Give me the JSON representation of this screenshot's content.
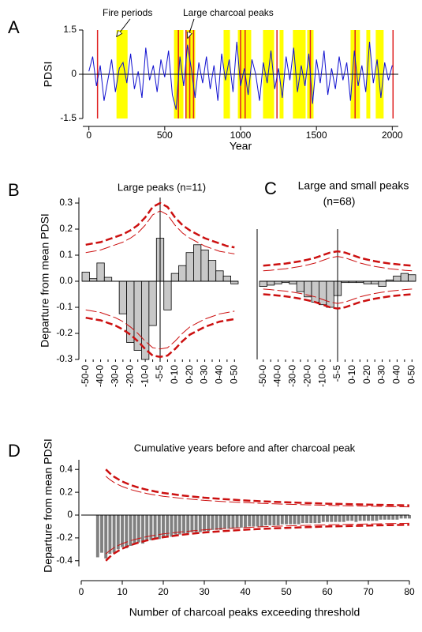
{
  "chart_data": [
    {
      "type": "line",
      "label": "A",
      "ylabel": "PDSI",
      "xlabel": "Year",
      "annotations": [
        "Fire periods",
        "Large charcoal peaks"
      ],
      "xlim": [
        -40,
        2040
      ],
      "xticks": [
        0,
        500,
        1000,
        1500,
        2000
      ],
      "ylim": [
        -1.5,
        1.5
      ],
      "yticks": [
        -1.5,
        0,
        1.5
      ],
      "x": [
        0,
        25,
        50,
        75,
        100,
        125,
        150,
        175,
        200,
        225,
        250,
        275,
        300,
        325,
        350,
        375,
        400,
        425,
        450,
        475,
        500,
        525,
        550,
        575,
        600,
        625,
        650,
        675,
        700,
        725,
        750,
        775,
        800,
        825,
        850,
        875,
        900,
        925,
        950,
        975,
        1000,
        1025,
        1050,
        1075,
        1100,
        1125,
        1150,
        1175,
        1200,
        1225,
        1250,
        1275,
        1300,
        1325,
        1350,
        1375,
        1400,
        1425,
        1450,
        1475,
        1500,
        1525,
        1550,
        1575,
        1600,
        1625,
        1650,
        1675,
        1700,
        1725,
        1750,
        1775,
        1800,
        1825,
        1850,
        1875,
        1900,
        1925,
        1950,
        1975,
        2000
      ],
      "series": [
        {
          "color": "#1010d0",
          "values": [
            0.1,
            0.6,
            -0.4,
            0.3,
            -0.9,
            -0.2,
            0.5,
            -0.6,
            0.2,
            0.4,
            -0.3,
            0.7,
            -0.5,
            0.1,
            -0.8,
            0.9,
            -0.2,
            0.3,
            -0.6,
            0.5,
            -0.1,
            0.8,
            -0.7,
            -1.2,
            0.6,
            -0.4,
            1.0,
            0.2,
            -0.8,
            0.4,
            -0.3,
            0.6,
            -0.5,
            0.3,
            -0.9,
            0.7,
            -0.2,
            0.5,
            -0.6,
            1.1,
            -0.4,
            0.2,
            -0.7,
            0.5,
            0.0,
            -0.9,
            0.4,
            -0.3,
            0.8,
            -0.5,
            0.2,
            -0.8,
            0.6,
            -0.2,
            0.9,
            -0.6,
            0.3,
            -0.4,
            0.7,
            -1.0,
            0.5,
            -0.3,
            0.8,
            -0.7,
            0.2,
            -0.5,
            0.6,
            -0.2,
            0.4,
            -0.9,
            0.8,
            -0.4,
            0.3,
            -0.6,
            1.1,
            -0.3,
            0.5,
            -0.8,
            0.4,
            -0.2,
            0.3
          ]
        }
      ],
      "fire_periods": [
        [
          182,
          255
        ],
        [
          561,
          623
        ],
        [
          644,
          701
        ],
        [
          888,
          930
        ],
        [
          982,
          1070
        ],
        [
          1148,
          1221
        ],
        [
          1257,
          1283
        ],
        [
          1345,
          1429
        ],
        [
          1439,
          1481
        ],
        [
          1725,
          1787
        ],
        [
          1829,
          1855
        ],
        [
          1891,
          1943
        ]
      ],
      "fire_color": "#ffff00",
      "charcoal_peaks": [
        57,
        590,
        640,
        665,
        690,
        1000,
        1030,
        1240,
        1460,
        1755,
        2005
      ],
      "peak_color": "#e02020"
    },
    {
      "type": "bar",
      "label": "B",
      "title": "Large peaks (n=11)",
      "ylabel": "Departure from mean PDSI",
      "categories": [
        "-50-0",
        null,
        "-40-0",
        null,
        "-30-0",
        null,
        "-20-0",
        null,
        "-10-0",
        null,
        "-5-5",
        null,
        "0-10",
        null,
        "0-20",
        null,
        "0-30",
        null,
        "0-40",
        null,
        "0-50"
      ],
      "values": [
        0.035,
        0.01,
        0.07,
        0.015,
        0.0,
        -0.125,
        -0.235,
        -0.265,
        -0.3,
        -0.17,
        0.165,
        -0.11,
        0.03,
        0.06,
        0.11,
        0.14,
        0.12,
        0.08,
        0.04,
        0.02,
        -0.01
      ],
      "color": "#c8c8c8",
      "ylim": [
        -0.3,
        0.3
      ],
      "yticks": [
        -0.3,
        -0.2,
        -0.1,
        {
          "value": 0,
          "label": "0.0"
        },
        0.1,
        0.2,
        0.3
      ],
      "series": [
        {
          "color": "#cc1010",
          "width": 2.5,
          "values": [
            0.14,
            0.145,
            0.15,
            0.16,
            0.17,
            0.18,
            0.195,
            0.215,
            0.245,
            0.285,
            0.3,
            0.285,
            0.245,
            0.215,
            0.195,
            0.18,
            0.165,
            0.155,
            0.145,
            0.135,
            0.13
          ]
        },
        {
          "color": "#cc1010",
          "width": 1,
          "values": [
            0.11,
            0.115,
            0.12,
            0.13,
            0.14,
            0.15,
            0.165,
            0.185,
            0.215,
            0.255,
            0.27,
            0.255,
            0.215,
            0.185,
            0.165,
            0.15,
            0.135,
            0.125,
            0.115,
            0.11,
            0.105
          ]
        },
        {
          "color": "#cc1010",
          "width": 2.5,
          "values": [
            -0.14,
            -0.145,
            -0.15,
            -0.16,
            -0.17,
            -0.185,
            -0.205,
            -0.23,
            -0.26,
            -0.285,
            -0.29,
            -0.285,
            -0.26,
            -0.23,
            -0.205,
            -0.19,
            -0.175,
            -0.165,
            -0.155,
            -0.15,
            -0.145
          ]
        },
        {
          "color": "#cc1010",
          "width": 1,
          "values": [
            -0.11,
            -0.115,
            -0.12,
            -0.13,
            -0.14,
            -0.155,
            -0.175,
            -0.2,
            -0.23,
            -0.255,
            -0.26,
            -0.255,
            -0.23,
            -0.2,
            -0.175,
            -0.16,
            -0.145,
            -0.135,
            -0.125,
            -0.12,
            -0.115
          ]
        }
      ]
    },
    {
      "type": "bar",
      "label": "C",
      "title": "Large and small peaks",
      "subtitle": "(n=68)",
      "categories": [
        "-50-0",
        null,
        "-40-0",
        null,
        "-30-0",
        null,
        "-20-0",
        null,
        "-10-0",
        null,
        "-5-5",
        null,
        "0-10",
        null,
        "0-20",
        null,
        "0-30",
        null,
        "0-40",
        null,
        "0-50"
      ],
      "values": [
        -0.02,
        -0.015,
        -0.01,
        -0.005,
        -0.01,
        -0.04,
        -0.06,
        -0.08,
        -0.09,
        -0.1,
        -0.055,
        -0.005,
        -0.005,
        -0.005,
        -0.01,
        -0.01,
        -0.02,
        0.005,
        0.02,
        0.03,
        0.025
      ],
      "color": "#c8c8c8",
      "ylim": [
        -0.3,
        0.3
      ],
      "series": [
        {
          "color": "#cc1010",
          "width": 2.5,
          "values": [
            0.06,
            0.062,
            0.065,
            0.068,
            0.072,
            0.077,
            0.083,
            0.09,
            0.1,
            0.11,
            0.115,
            0.11,
            0.1,
            0.09,
            0.083,
            0.077,
            0.072,
            0.068,
            0.065,
            0.062,
            0.06
          ]
        },
        {
          "color": "#cc1010",
          "width": 1,
          "values": [
            0.04,
            0.042,
            0.045,
            0.048,
            0.052,
            0.057,
            0.063,
            0.07,
            0.08,
            0.09,
            0.095,
            0.09,
            0.08,
            0.07,
            0.063,
            0.057,
            0.052,
            0.048,
            0.045,
            0.042,
            0.04
          ]
        },
        {
          "color": "#cc1010",
          "width": 2.5,
          "values": [
            -0.05,
            -0.052,
            -0.055,
            -0.058,
            -0.062,
            -0.067,
            -0.073,
            -0.08,
            -0.09,
            -0.1,
            -0.105,
            -0.1,
            -0.09,
            -0.08,
            -0.073,
            -0.067,
            -0.062,
            -0.058,
            -0.055,
            -0.052,
            -0.05
          ]
        },
        {
          "color": "#cc1010",
          "width": 1,
          "values": [
            -0.03,
            -0.032,
            -0.035,
            -0.038,
            -0.042,
            -0.047,
            -0.053,
            -0.06,
            -0.07,
            -0.08,
            -0.085,
            -0.08,
            -0.07,
            -0.06,
            -0.053,
            -0.047,
            -0.042,
            -0.038,
            -0.035,
            -0.032,
            -0.03
          ]
        }
      ]
    },
    {
      "type": "bar",
      "label": "D",
      "title": "Cumulative years before and after charcoal peak",
      "ylabel": "Departure from mean PDSI",
      "xlabel": "Number of charcoal peaks exceeding threshold",
      "xlim": [
        0,
        80
      ],
      "xticks": [
        0,
        10,
        20,
        30,
        40,
        50,
        60,
        70,
        80
      ],
      "ylim": [
        -0.45,
        0.45
      ],
      "yticks": [
        -0.4,
        -0.2,
        0,
        0.2,
        0.4
      ],
      "color": "#808080",
      "x": [
        4,
        5,
        6,
        7,
        8,
        9,
        10,
        11,
        12,
        13,
        14,
        15,
        16,
        17,
        18,
        19,
        20,
        21,
        22,
        23,
        24,
        25,
        26,
        27,
        28,
        29,
        30,
        31,
        32,
        33,
        34,
        35,
        36,
        37,
        38,
        39,
        40,
        41,
        42,
        43,
        44,
        45,
        46,
        47,
        48,
        49,
        50,
        51,
        52,
        53,
        54,
        55,
        56,
        57,
        58,
        59,
        60,
        61,
        62,
        63,
        64,
        65,
        66,
        67,
        68,
        69,
        70,
        71,
        72,
        73,
        74,
        75,
        76,
        77,
        78,
        79,
        80
      ],
      "values": [
        -0.37,
        -0.33,
        -0.38,
        -0.34,
        -0.33,
        -0.3,
        -0.28,
        -0.29,
        -0.27,
        -0.25,
        -0.24,
        -0.25,
        -0.22,
        -0.22,
        -0.2,
        -0.21,
        -0.19,
        -0.18,
        -0.19,
        -0.17,
        -0.17,
        -0.16,
        -0.16,
        -0.15,
        -0.15,
        -0.15,
        -0.14,
        -0.14,
        -0.13,
        -0.13,
        -0.13,
        -0.12,
        -0.12,
        -0.12,
        -0.11,
        -0.11,
        -0.11,
        -0.1,
        -0.1,
        -0.1,
        -0.1,
        -0.09,
        -0.09,
        -0.09,
        -0.09,
        -0.08,
        -0.08,
        -0.08,
        -0.08,
        -0.08,
        -0.07,
        -0.07,
        -0.07,
        -0.07,
        -0.07,
        -0.06,
        -0.06,
        -0.06,
        -0.06,
        -0.06,
        -0.06,
        -0.05,
        -0.05,
        -0.06,
        -0.05,
        -0.05,
        -0.05,
        -0.05,
        -0.05,
        -0.04,
        -0.04,
        -0.04,
        -0.04,
        -0.04,
        -0.03,
        -0.03,
        -0.03
      ],
      "series": [
        {
          "color": "#cc1010",
          "width": 2.5,
          "x": [
            6,
            7,
            8,
            9,
            10,
            12,
            14,
            16,
            18,
            20,
            25,
            30,
            35,
            40,
            45,
            50,
            55,
            60,
            65,
            70,
            75,
            80
          ],
          "values": [
            0.4,
            0.365,
            0.336,
            0.314,
            0.294,
            0.264,
            0.241,
            0.222,
            0.207,
            0.194,
            0.17,
            0.152,
            0.139,
            0.128,
            0.119,
            0.112,
            0.106,
            0.1,
            0.096,
            0.092,
            0.088,
            0.085
          ]
        },
        {
          "color": "#cc1010",
          "width": 1,
          "x": [
            6,
            7,
            8,
            9,
            10,
            12,
            14,
            16,
            18,
            20,
            25,
            30,
            35,
            40,
            45,
            50,
            55,
            60,
            65,
            70,
            75,
            80
          ],
          "values": [
            0.34,
            0.31,
            0.286,
            0.267,
            0.25,
            0.224,
            0.205,
            0.189,
            0.176,
            0.165,
            0.145,
            0.129,
            0.118,
            0.109,
            0.101,
            0.095,
            0.09,
            0.085,
            0.082,
            0.078,
            0.075,
            0.072
          ]
        },
        {
          "color": "#cc1010",
          "width": 2.5,
          "x": [
            6,
            7,
            8,
            9,
            10,
            12,
            14,
            16,
            18,
            20,
            25,
            30,
            35,
            40,
            45,
            50,
            55,
            60,
            65,
            70,
            75,
            80
          ],
          "values": [
            -0.4,
            -0.365,
            -0.336,
            -0.314,
            -0.294,
            -0.264,
            -0.241,
            -0.222,
            -0.207,
            -0.194,
            -0.17,
            -0.152,
            -0.139,
            -0.128,
            -0.119,
            -0.112,
            -0.106,
            -0.1,
            -0.096,
            -0.092,
            -0.088,
            -0.085
          ]
        },
        {
          "color": "#cc1010",
          "width": 1,
          "x": [
            6,
            7,
            8,
            9,
            10,
            12,
            14,
            16,
            18,
            20,
            25,
            30,
            35,
            40,
            45,
            50,
            55,
            60,
            65,
            70,
            75,
            80
          ],
          "values": [
            -0.34,
            -0.31,
            -0.286,
            -0.267,
            -0.25,
            -0.224,
            -0.205,
            -0.189,
            -0.176,
            -0.165,
            -0.145,
            -0.129,
            -0.118,
            -0.109,
            -0.101,
            -0.095,
            -0.09,
            -0.085,
            -0.082,
            -0.078,
            -0.075,
            -0.072
          ]
        }
      ]
    }
  ]
}
